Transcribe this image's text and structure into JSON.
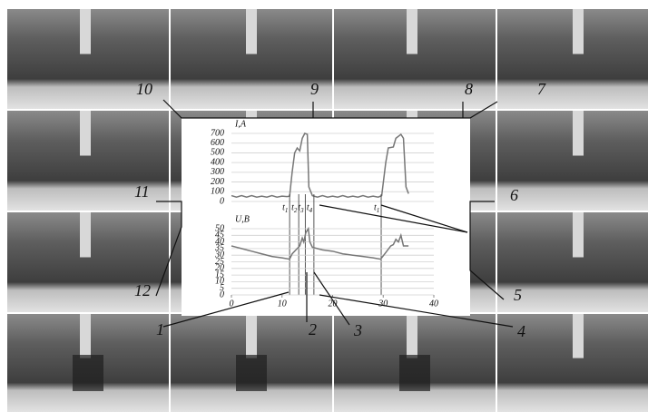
{
  "chart_data": [
    {
      "type": "line",
      "title": "I,A",
      "xlim": [
        0,
        40
      ],
      "ylim": [
        0,
        700
      ],
      "yticks": [
        0,
        100,
        200,
        300,
        400,
        500,
        600,
        700
      ],
      "grid": true,
      "series": [
        {
          "color": "#777777",
          "x": [
            0,
            1,
            2,
            3,
            4,
            5,
            6,
            7,
            8,
            9,
            10,
            11,
            11.5,
            12,
            12.5,
            13,
            13.5,
            14,
            14.5,
            15,
            15.3,
            16,
            17,
            18,
            19,
            20,
            21,
            22,
            23,
            24,
            25,
            26,
            27,
            28,
            29,
            29.7,
            30.5,
            31,
            32,
            32.5,
            33.5,
            34,
            34.5,
            35
          ],
          "values": [
            60,
            45,
            60,
            45,
            60,
            45,
            55,
            45,
            60,
            45,
            55,
            50,
            55,
            300,
            500,
            550,
            520,
            650,
            700,
            690,
            150,
            60,
            45,
            60,
            45,
            55,
            45,
            60,
            45,
            55,
            45,
            60,
            45,
            55,
            45,
            60,
            400,
            550,
            560,
            650,
            690,
            650,
            150,
            80
          ]
        }
      ],
      "markers": [
        {
          "x": 11.5,
          "label": "t1"
        },
        {
          "x": 13.3,
          "label": "t2"
        },
        {
          "x": 14.6,
          "label": "t3"
        },
        {
          "x": 16.3,
          "label": "t4"
        },
        {
          "x": 29.6,
          "label": "t1"
        }
      ]
    },
    {
      "type": "line",
      "title": "U,B",
      "xlim": [
        0,
        40
      ],
      "ylim": [
        0,
        50
      ],
      "yticks": [
        0,
        5,
        10,
        15,
        20,
        25,
        30,
        35,
        40,
        45,
        50
      ],
      "xticks": [
        0,
        10,
        20,
        30,
        40
      ],
      "grid": true,
      "series": [
        {
          "color": "#777777",
          "x": [
            0,
            1,
            2,
            4,
            6,
            8,
            10,
            11.5,
            12,
            13,
            13.5,
            14,
            14.3,
            14.7,
            15.2,
            15.5,
            16,
            18,
            20,
            22,
            24,
            26,
            28,
            29.5,
            30.5,
            31.5,
            32,
            32.5,
            33,
            33.5,
            34,
            35
          ],
          "values": [
            37,
            36,
            35,
            33,
            31,
            29,
            28,
            27,
            31,
            35,
            37,
            43,
            40,
            47,
            50,
            40,
            36,
            34,
            33,
            31,
            30,
            29,
            28,
            27,
            32,
            37,
            38,
            42,
            40,
            45,
            37,
            37
          ]
        }
      ]
    }
  ],
  "frame_labels": [
    "1",
    "2",
    "3",
    "4",
    "5",
    "6",
    "7",
    "8",
    "9",
    "10",
    "11",
    "12"
  ]
}
